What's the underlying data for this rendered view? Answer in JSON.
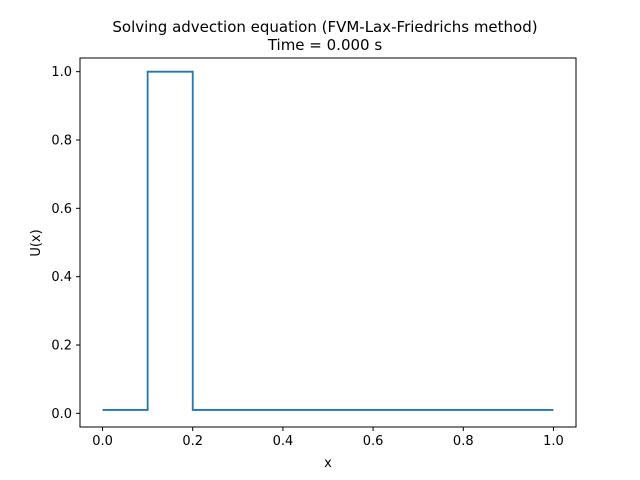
{
  "chart_data": {
    "type": "line",
    "title": "Solving advection equation (FVM-Lax-Friedrichs method)",
    "subtitle": "Time = 0.000 s",
    "xlabel": "x",
    "ylabel": "U(x)",
    "xlim": [
      -0.05,
      1.05
    ],
    "ylim": [
      -0.04,
      1.04
    ],
    "xticks": [
      0.0,
      0.2,
      0.4,
      0.6,
      0.8,
      1.0
    ],
    "xtick_labels": [
      "0.0",
      "0.2",
      "0.4",
      "0.6",
      "0.8",
      "1.0"
    ],
    "yticks": [
      0.0,
      0.2,
      0.4,
      0.6,
      0.8,
      1.0
    ],
    "ytick_labels": [
      "0.0",
      "0.2",
      "0.4",
      "0.6",
      "0.8",
      "1.0"
    ],
    "grid": false,
    "legend": "none",
    "colors": {
      "line": "#1f77b4",
      "axes": "#000000",
      "background": "#ffffff"
    },
    "series": [
      {
        "x": [
          0.0,
          0.1,
          0.1,
          0.2,
          0.2,
          1.0
        ],
        "values": [
          0.01,
          0.01,
          1.0,
          1.0,
          0.01,
          0.01
        ]
      }
    ]
  }
}
